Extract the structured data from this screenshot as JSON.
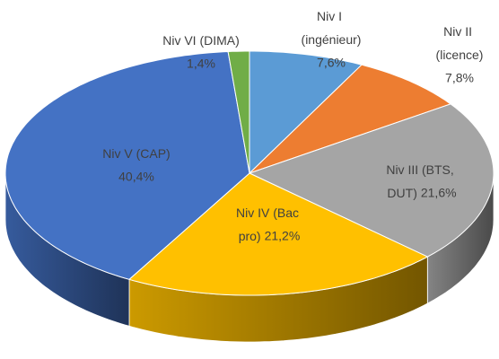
{
  "chart_data": {
    "type": "pie3d",
    "categories": [
      "Niv I (ingénieur)",
      "Niv II (licence)",
      "Niv III (BTS, DUT)",
      "Niv IV (Bac pro)",
      "Niv V (CAP)",
      "Niv VI (DIMA)"
    ],
    "values": [
      7.6,
      7.8,
      21.6,
      21.2,
      40.4,
      1.4
    ],
    "value_labels": [
      "7,6%",
      "7,8%",
      "21,6%",
      "21,2%",
      "40,4%",
      "1,4%"
    ],
    "colors": [
      "#5b9bd5",
      "#ed7d31",
      "#a5a5a5",
      "#ffc000",
      "#4472c4",
      "#70ad47"
    ]
  }
}
